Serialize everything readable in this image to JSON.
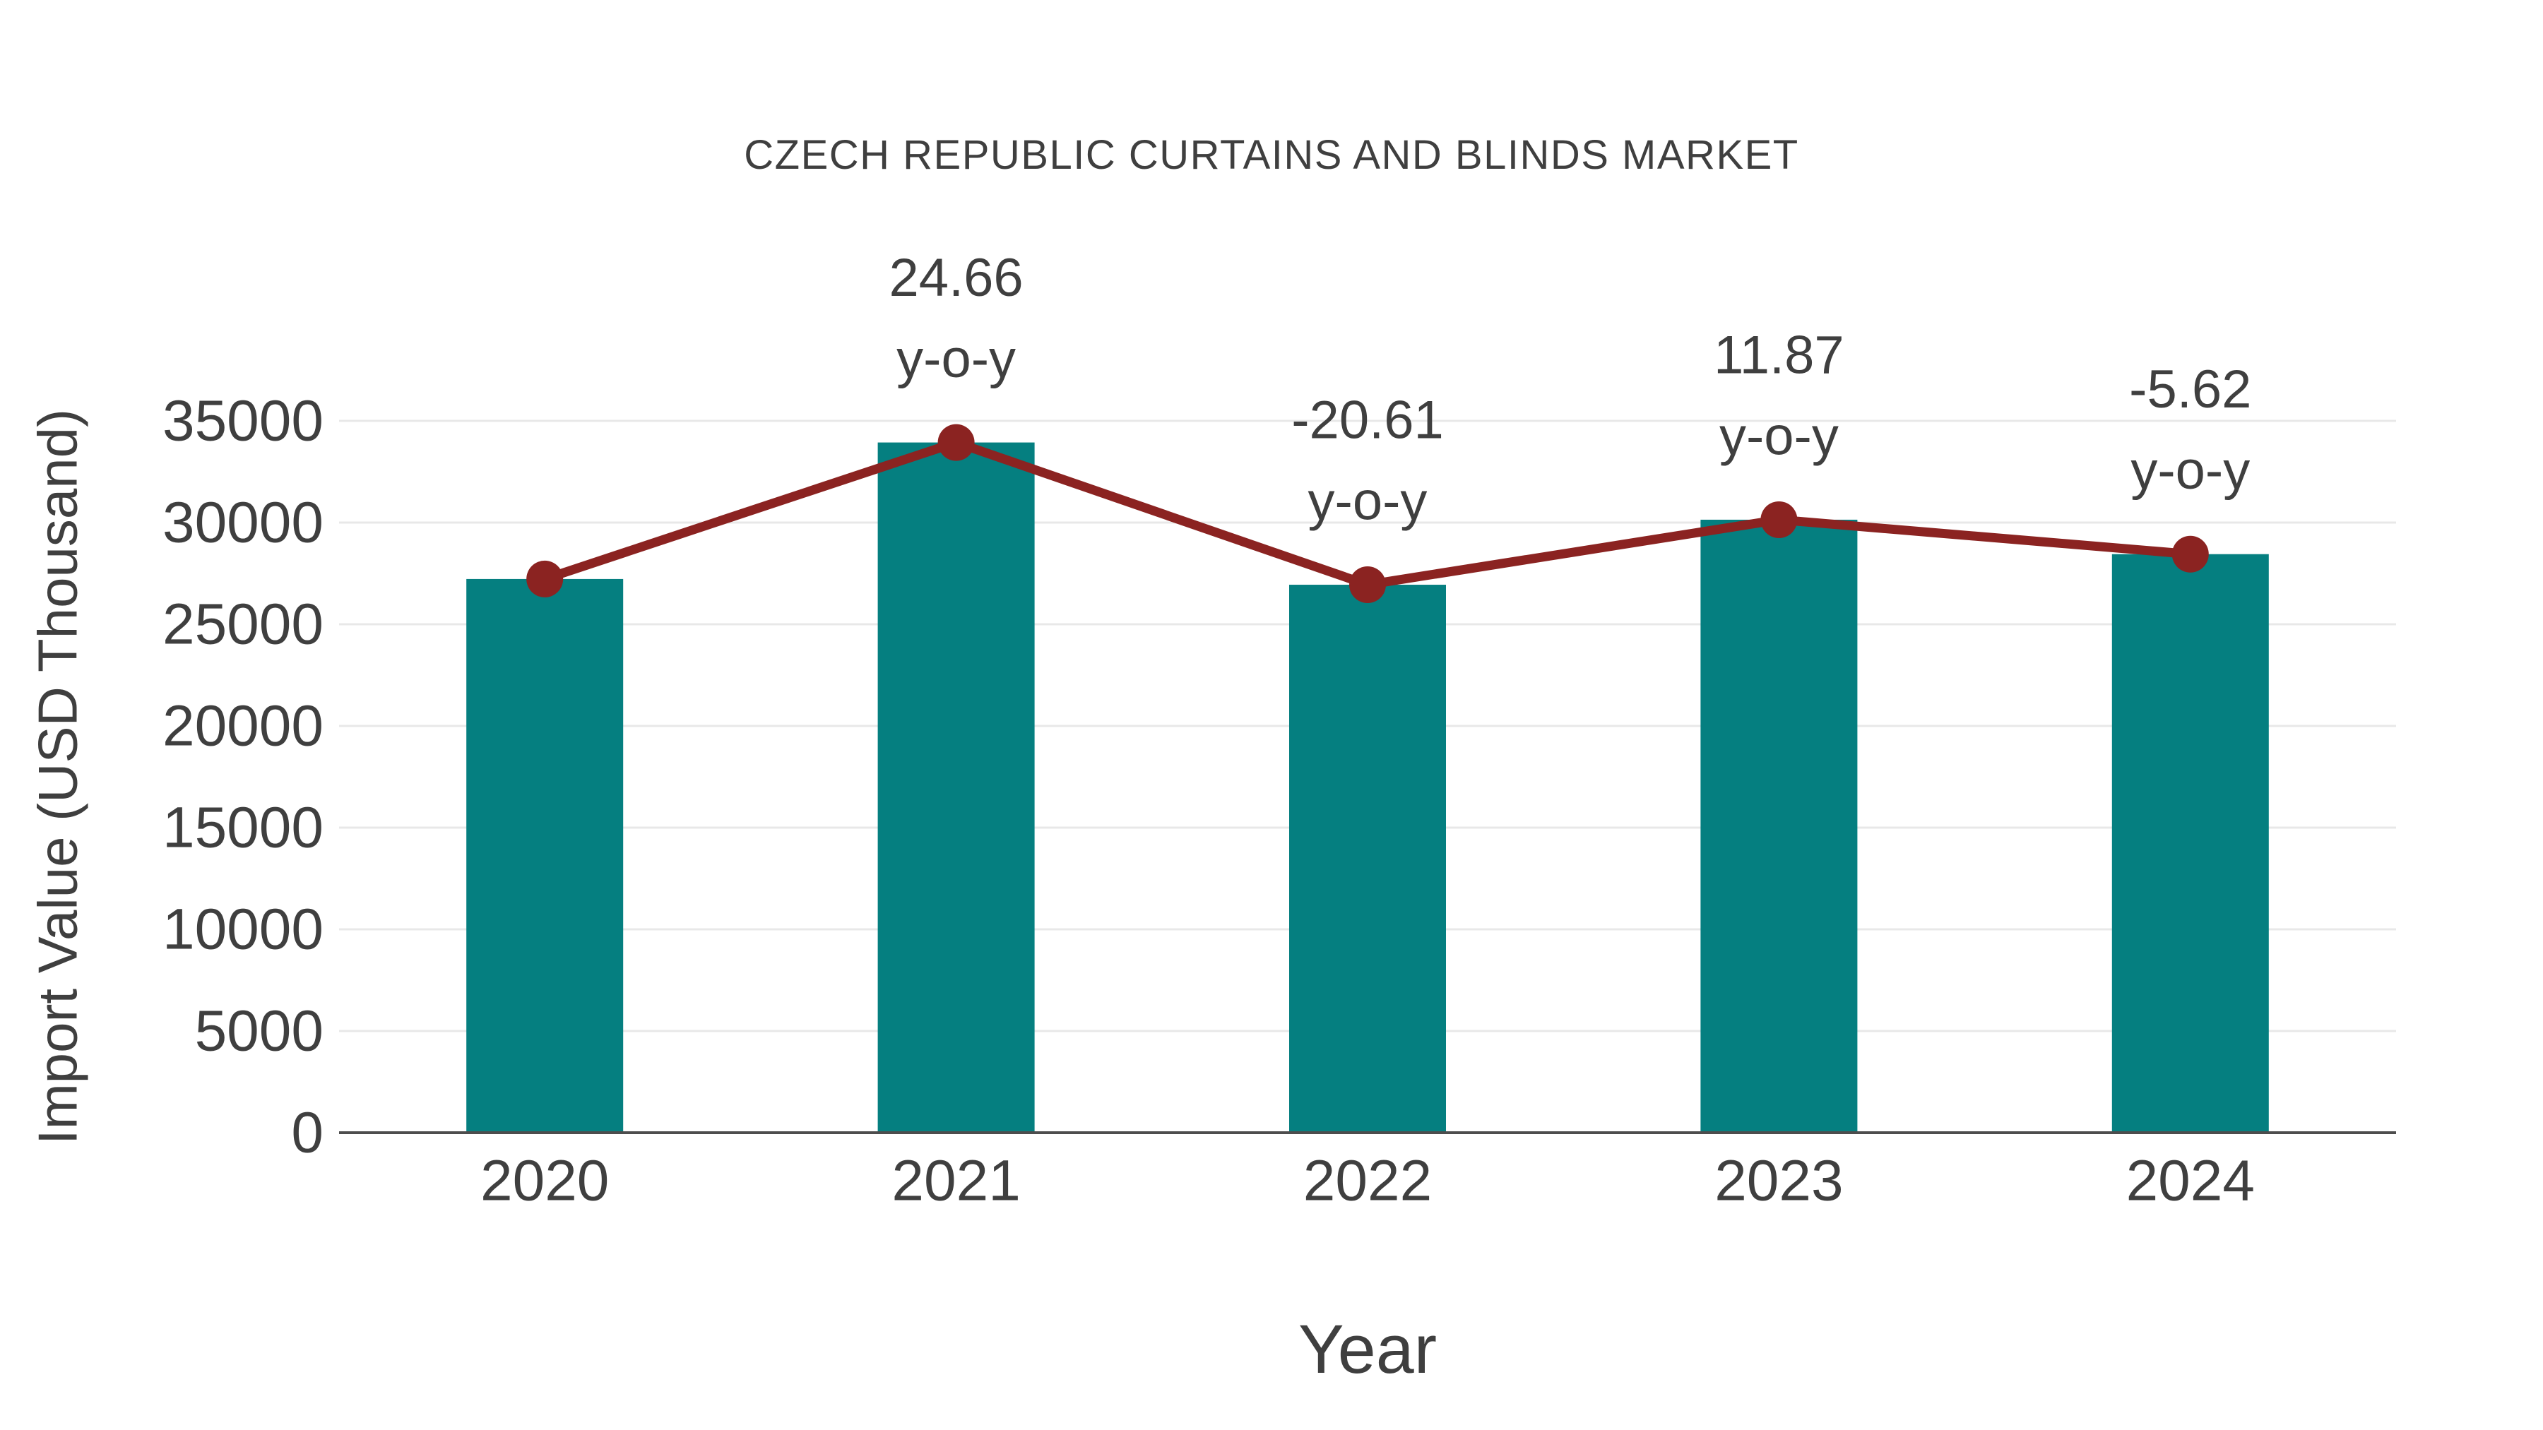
{
  "chart_data": {
    "type": "bar",
    "title": "CZECH REPUBLIC CURTAINS AND BLINDS MARKET",
    "xlabel": "Year",
    "ylabel": "Import Value (USD Thousand)",
    "categories": [
      "2020",
      "2021",
      "2022",
      "2023",
      "2024"
    ],
    "series": [
      {
        "name": "import-value-bars",
        "type": "bar",
        "values": [
          27225,
          33938,
          26943,
          30141,
          28447
        ]
      },
      {
        "name": "import-value-trend-line",
        "type": "line",
        "values": [
          27225,
          33938,
          26943,
          30141,
          28447
        ]
      }
    ],
    "annotations": [
      {
        "category": "2021",
        "line1": "24.66",
        "line2": "y-o-y"
      },
      {
        "category": "2022",
        "line1": "-20.61",
        "line2": "y-o-y"
      },
      {
        "category": "2023",
        "line1": "11.87",
        "line2": "y-o-y"
      },
      {
        "category": "2024",
        "line1": "-5.62",
        "line2": "y-o-y"
      }
    ],
    "yticks": [
      0,
      5000,
      10000,
      15000,
      20000,
      25000,
      30000,
      35000
    ],
    "ylim": [
      0,
      36000
    ],
    "grid": "horizontal",
    "legend": "none",
    "colors": {
      "bar": "#057f80",
      "line": "#8b2321",
      "marker": "#8b2321",
      "text": "#3f3f3f",
      "grid": "#e8e8e8",
      "axis": "#4d4d4d",
      "background": "#ffffff"
    }
  }
}
